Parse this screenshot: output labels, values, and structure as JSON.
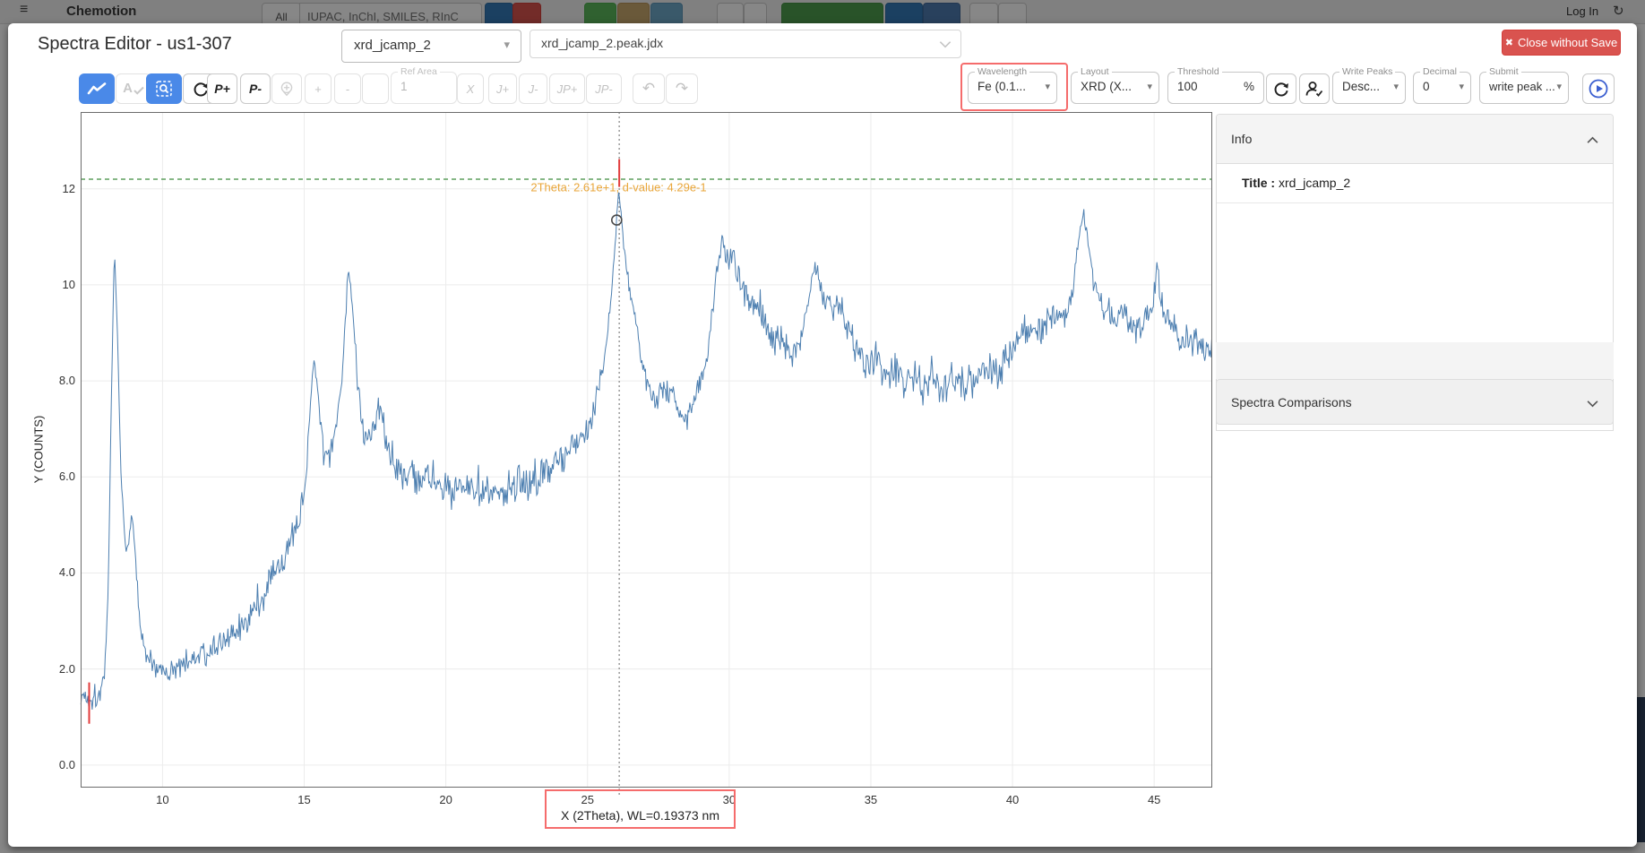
{
  "icons": {
    "hamburger": "≡",
    "close": "✖",
    "caret_down": "▾",
    "undo": "↶",
    "redo": "↷",
    "login_refresh": "↻"
  },
  "background": {
    "navbar": {
      "brand": "Chemotion",
      "all_label": "All",
      "search_placeholder": "IUPAC, InChI, SMILES, RInC",
      "login_label": "Log In"
    }
  },
  "modal": {
    "title": "Spectra Editor - us1-307",
    "file_select": {
      "value": "xrd_jcamp_2"
    },
    "peak_file_select": {
      "value": "xrd_jcamp_2.peak.jdx"
    },
    "close_button": {
      "label": "Close without Save"
    },
    "toolbar": {
      "p_plus": "P+",
      "p_minus": "P-",
      "plus": "+",
      "minus": "-",
      "ref_area": {
        "label": "Ref Area",
        "value": "1"
      },
      "x_button": "X",
      "j_plus": "J+",
      "j_minus": "J-",
      "jp_plus": "JP+",
      "jp_minus": "JP-",
      "wavelength": {
        "label": "Wavelength",
        "value": "Fe (0.1..."
      },
      "layout": {
        "label": "Layout",
        "value": "XRD (X..."
      },
      "threshold": {
        "label": "Threshold",
        "value": "100",
        "unit": "%"
      },
      "write_peaks": {
        "label": "Write Peaks",
        "value": "Desc..."
      },
      "decimal": {
        "label": "Decimal",
        "value": "0"
      },
      "submit": {
        "label": "Submit",
        "value": "write peak ..."
      }
    },
    "info_panel": {
      "header": "Info",
      "title_label": "Title :",
      "title_value": "xrd_jcamp_2"
    },
    "comparisons_panel": {
      "header": "Spectra Comparisons"
    }
  },
  "chart_data": {
    "type": "line",
    "title": "",
    "xlabel": "X (2Theta), WL=0.19373 nm",
    "ylabel": "Y (COUNTS)",
    "x_range": [
      7.11,
      47.05
    ],
    "y_range": [
      -0.47,
      13.6
    ],
    "x_ticks": [
      10,
      15,
      20,
      25,
      30,
      35,
      40,
      45
    ],
    "y_tick_values": [
      12,
      10,
      8,
      6,
      4,
      2,
      0
    ],
    "y_tick_labels": [
      "12",
      "10",
      "8.0",
      "6.0",
      "4.0",
      "2.0",
      "0.0"
    ],
    "grid": true,
    "legend": false,
    "line_color": "#4d7fb0",
    "threshold_line": {
      "y": 12.2,
      "color": "#3c8c3c",
      "style": "dashed"
    },
    "cursor_line": {
      "x": 26.12,
      "color": "#9a9a9a",
      "style": "dotted"
    },
    "peak_markers": [
      {
        "x": 26.12,
        "y1": 12.04,
        "y2": 12.62
      },
      {
        "x": 7.41,
        "y1": 0.86,
        "y2": 1.72
      }
    ],
    "peak_marker_color": "#e23b3b",
    "hover_marker": {
      "x": 26.03,
      "y": 11.35
    },
    "annotation": {
      "text": "2Theta: 2.61e+1, d-value: 4.29e-1",
      "x": 26.1,
      "y": 11.95,
      "color": "#e9a63a"
    },
    "series": [
      {
        "name": "xrd_jcamp_2",
        "anchors": [
          [
            7.12,
            1.45,
            0.1
          ],
          [
            7.45,
            1.38,
            0.1
          ],
          [
            7.75,
            1.5,
            0.1
          ],
          [
            7.95,
            1.75,
            0.08
          ],
          [
            8.08,
            3.6,
            0.05
          ],
          [
            8.2,
            7.8,
            0.04
          ],
          [
            8.3,
            10.78,
            0.03
          ],
          [
            8.4,
            9.2,
            0.04
          ],
          [
            8.52,
            6.3,
            0.05
          ],
          [
            8.68,
            4.6,
            0.06
          ],
          [
            8.78,
            4.45,
            0.06
          ],
          [
            8.92,
            5.3,
            0.06
          ],
          [
            9.05,
            4.3,
            0.07
          ],
          [
            9.2,
            2.9,
            0.08
          ],
          [
            9.4,
            2.25,
            0.09
          ],
          [
            9.65,
            2.1,
            0.1
          ],
          [
            9.95,
            2.0,
            0.1
          ],
          [
            10.25,
            1.92,
            0.1
          ],
          [
            10.6,
            2.05,
            0.1
          ],
          [
            11.0,
            2.2,
            0.11
          ],
          [
            11.5,
            2.3,
            0.11
          ],
          [
            12.0,
            2.45,
            0.12
          ],
          [
            12.5,
            2.7,
            0.13
          ],
          [
            13.0,
            3.05,
            0.14
          ],
          [
            13.5,
            3.5,
            0.15
          ],
          [
            14.0,
            4.0,
            0.16
          ],
          [
            14.45,
            4.5,
            0.16
          ],
          [
            14.8,
            4.95,
            0.14
          ],
          [
            15.05,
            5.9,
            0.11
          ],
          [
            15.22,
            7.6,
            0.09
          ],
          [
            15.35,
            8.5,
            0.07
          ],
          [
            15.5,
            7.6,
            0.09
          ],
          [
            15.68,
            6.55,
            0.11
          ],
          [
            15.9,
            6.45,
            0.12
          ],
          [
            16.15,
            7.1,
            0.11
          ],
          [
            16.38,
            8.4,
            0.09
          ],
          [
            16.55,
            10.35,
            0.06
          ],
          [
            16.7,
            9.6,
            0.08
          ],
          [
            16.88,
            8.0,
            0.1
          ],
          [
            17.1,
            7.0,
            0.12
          ],
          [
            17.32,
            6.8,
            0.12
          ],
          [
            17.55,
            7.3,
            0.12
          ],
          [
            17.72,
            7.4,
            0.12
          ],
          [
            17.95,
            6.6,
            0.13
          ],
          [
            18.25,
            6.2,
            0.14
          ],
          [
            18.7,
            5.95,
            0.15
          ],
          [
            19.2,
            6.0,
            0.16
          ],
          [
            19.7,
            5.85,
            0.16
          ],
          [
            20.2,
            5.8,
            0.17
          ],
          [
            20.7,
            5.75,
            0.17
          ],
          [
            21.2,
            5.85,
            0.17
          ],
          [
            21.7,
            5.75,
            0.17
          ],
          [
            22.2,
            5.8,
            0.17
          ],
          [
            22.7,
            5.9,
            0.17
          ],
          [
            23.2,
            6.0,
            0.17
          ],
          [
            23.7,
            6.2,
            0.16
          ],
          [
            24.2,
            6.45,
            0.15
          ],
          [
            24.65,
            6.7,
            0.14
          ],
          [
            25.05,
            7.1,
            0.12
          ],
          [
            25.4,
            7.9,
            0.1
          ],
          [
            25.7,
            8.9,
            0.07
          ],
          [
            25.95,
            10.6,
            0.05
          ],
          [
            26.1,
            12.02,
            0.03
          ],
          [
            26.3,
            10.7,
            0.05
          ],
          [
            26.55,
            9.7,
            0.08
          ],
          [
            26.8,
            8.9,
            0.1
          ],
          [
            27.05,
            8.1,
            0.11
          ],
          [
            27.35,
            7.65,
            0.12
          ],
          [
            27.65,
            7.8,
            0.12
          ],
          [
            27.95,
            7.8,
            0.12
          ],
          [
            28.25,
            7.4,
            0.13
          ],
          [
            28.5,
            7.05,
            0.13
          ],
          [
            28.75,
            7.7,
            0.13
          ],
          [
            29.0,
            7.95,
            0.12
          ],
          [
            29.25,
            8.5,
            0.12
          ],
          [
            29.5,
            9.9,
            0.1
          ],
          [
            29.75,
            11.0,
            0.1
          ],
          [
            29.95,
            10.45,
            0.11
          ],
          [
            30.15,
            10.7,
            0.11
          ],
          [
            30.4,
            10.05,
            0.12
          ],
          [
            30.7,
            9.55,
            0.13
          ],
          [
            31.0,
            9.7,
            0.13
          ],
          [
            31.3,
            9.25,
            0.14
          ],
          [
            31.6,
            8.8,
            0.14
          ],
          [
            31.9,
            8.95,
            0.14
          ],
          [
            32.2,
            8.55,
            0.14
          ],
          [
            32.5,
            8.9,
            0.13
          ],
          [
            32.8,
            9.75,
            0.12
          ],
          [
            33.05,
            10.4,
            0.11
          ],
          [
            33.3,
            9.9,
            0.12
          ],
          [
            33.6,
            9.5,
            0.13
          ],
          [
            33.9,
            9.6,
            0.13
          ],
          [
            34.2,
            9.1,
            0.14
          ],
          [
            34.55,
            8.65,
            0.14
          ],
          [
            34.9,
            8.35,
            0.15
          ],
          [
            35.2,
            8.5,
            0.15
          ],
          [
            35.5,
            8.1,
            0.15
          ],
          [
            35.8,
            8.3,
            0.15
          ],
          [
            36.15,
            7.95,
            0.15
          ],
          [
            36.5,
            8.1,
            0.15
          ],
          [
            36.85,
            7.85,
            0.15
          ],
          [
            37.2,
            8.05,
            0.15
          ],
          [
            37.55,
            7.8,
            0.15
          ],
          [
            37.9,
            8.1,
            0.15
          ],
          [
            38.25,
            7.9,
            0.15
          ],
          [
            38.65,
            8.05,
            0.15
          ],
          [
            39.05,
            8.3,
            0.15
          ],
          [
            39.45,
            8.15,
            0.15
          ],
          [
            39.85,
            8.55,
            0.14
          ],
          [
            40.25,
            8.9,
            0.14
          ],
          [
            40.65,
            9.2,
            0.14
          ],
          [
            41.05,
            9.05,
            0.13
          ],
          [
            41.45,
            9.35,
            0.13
          ],
          [
            41.8,
            9.3,
            0.12
          ],
          [
            42.1,
            9.8,
            0.1
          ],
          [
            42.35,
            11.0,
            0.07
          ],
          [
            42.5,
            11.5,
            0.05
          ],
          [
            42.68,
            10.85,
            0.08
          ],
          [
            42.9,
            10.0,
            0.11
          ],
          [
            43.2,
            9.5,
            0.12
          ],
          [
            43.55,
            9.3,
            0.13
          ],
          [
            43.9,
            9.45,
            0.13
          ],
          [
            44.25,
            9.05,
            0.14
          ],
          [
            44.6,
            9.2,
            0.14
          ],
          [
            44.95,
            9.55,
            0.13
          ],
          [
            45.12,
            10.35,
            0.11
          ],
          [
            45.3,
            9.45,
            0.13
          ],
          [
            45.6,
            9.2,
            0.14
          ],
          [
            45.95,
            8.85,
            0.14
          ],
          [
            46.3,
            9.0,
            0.14
          ],
          [
            46.65,
            8.55,
            0.15
          ],
          [
            47.03,
            8.75,
            0.15
          ]
        ]
      }
    ]
  }
}
